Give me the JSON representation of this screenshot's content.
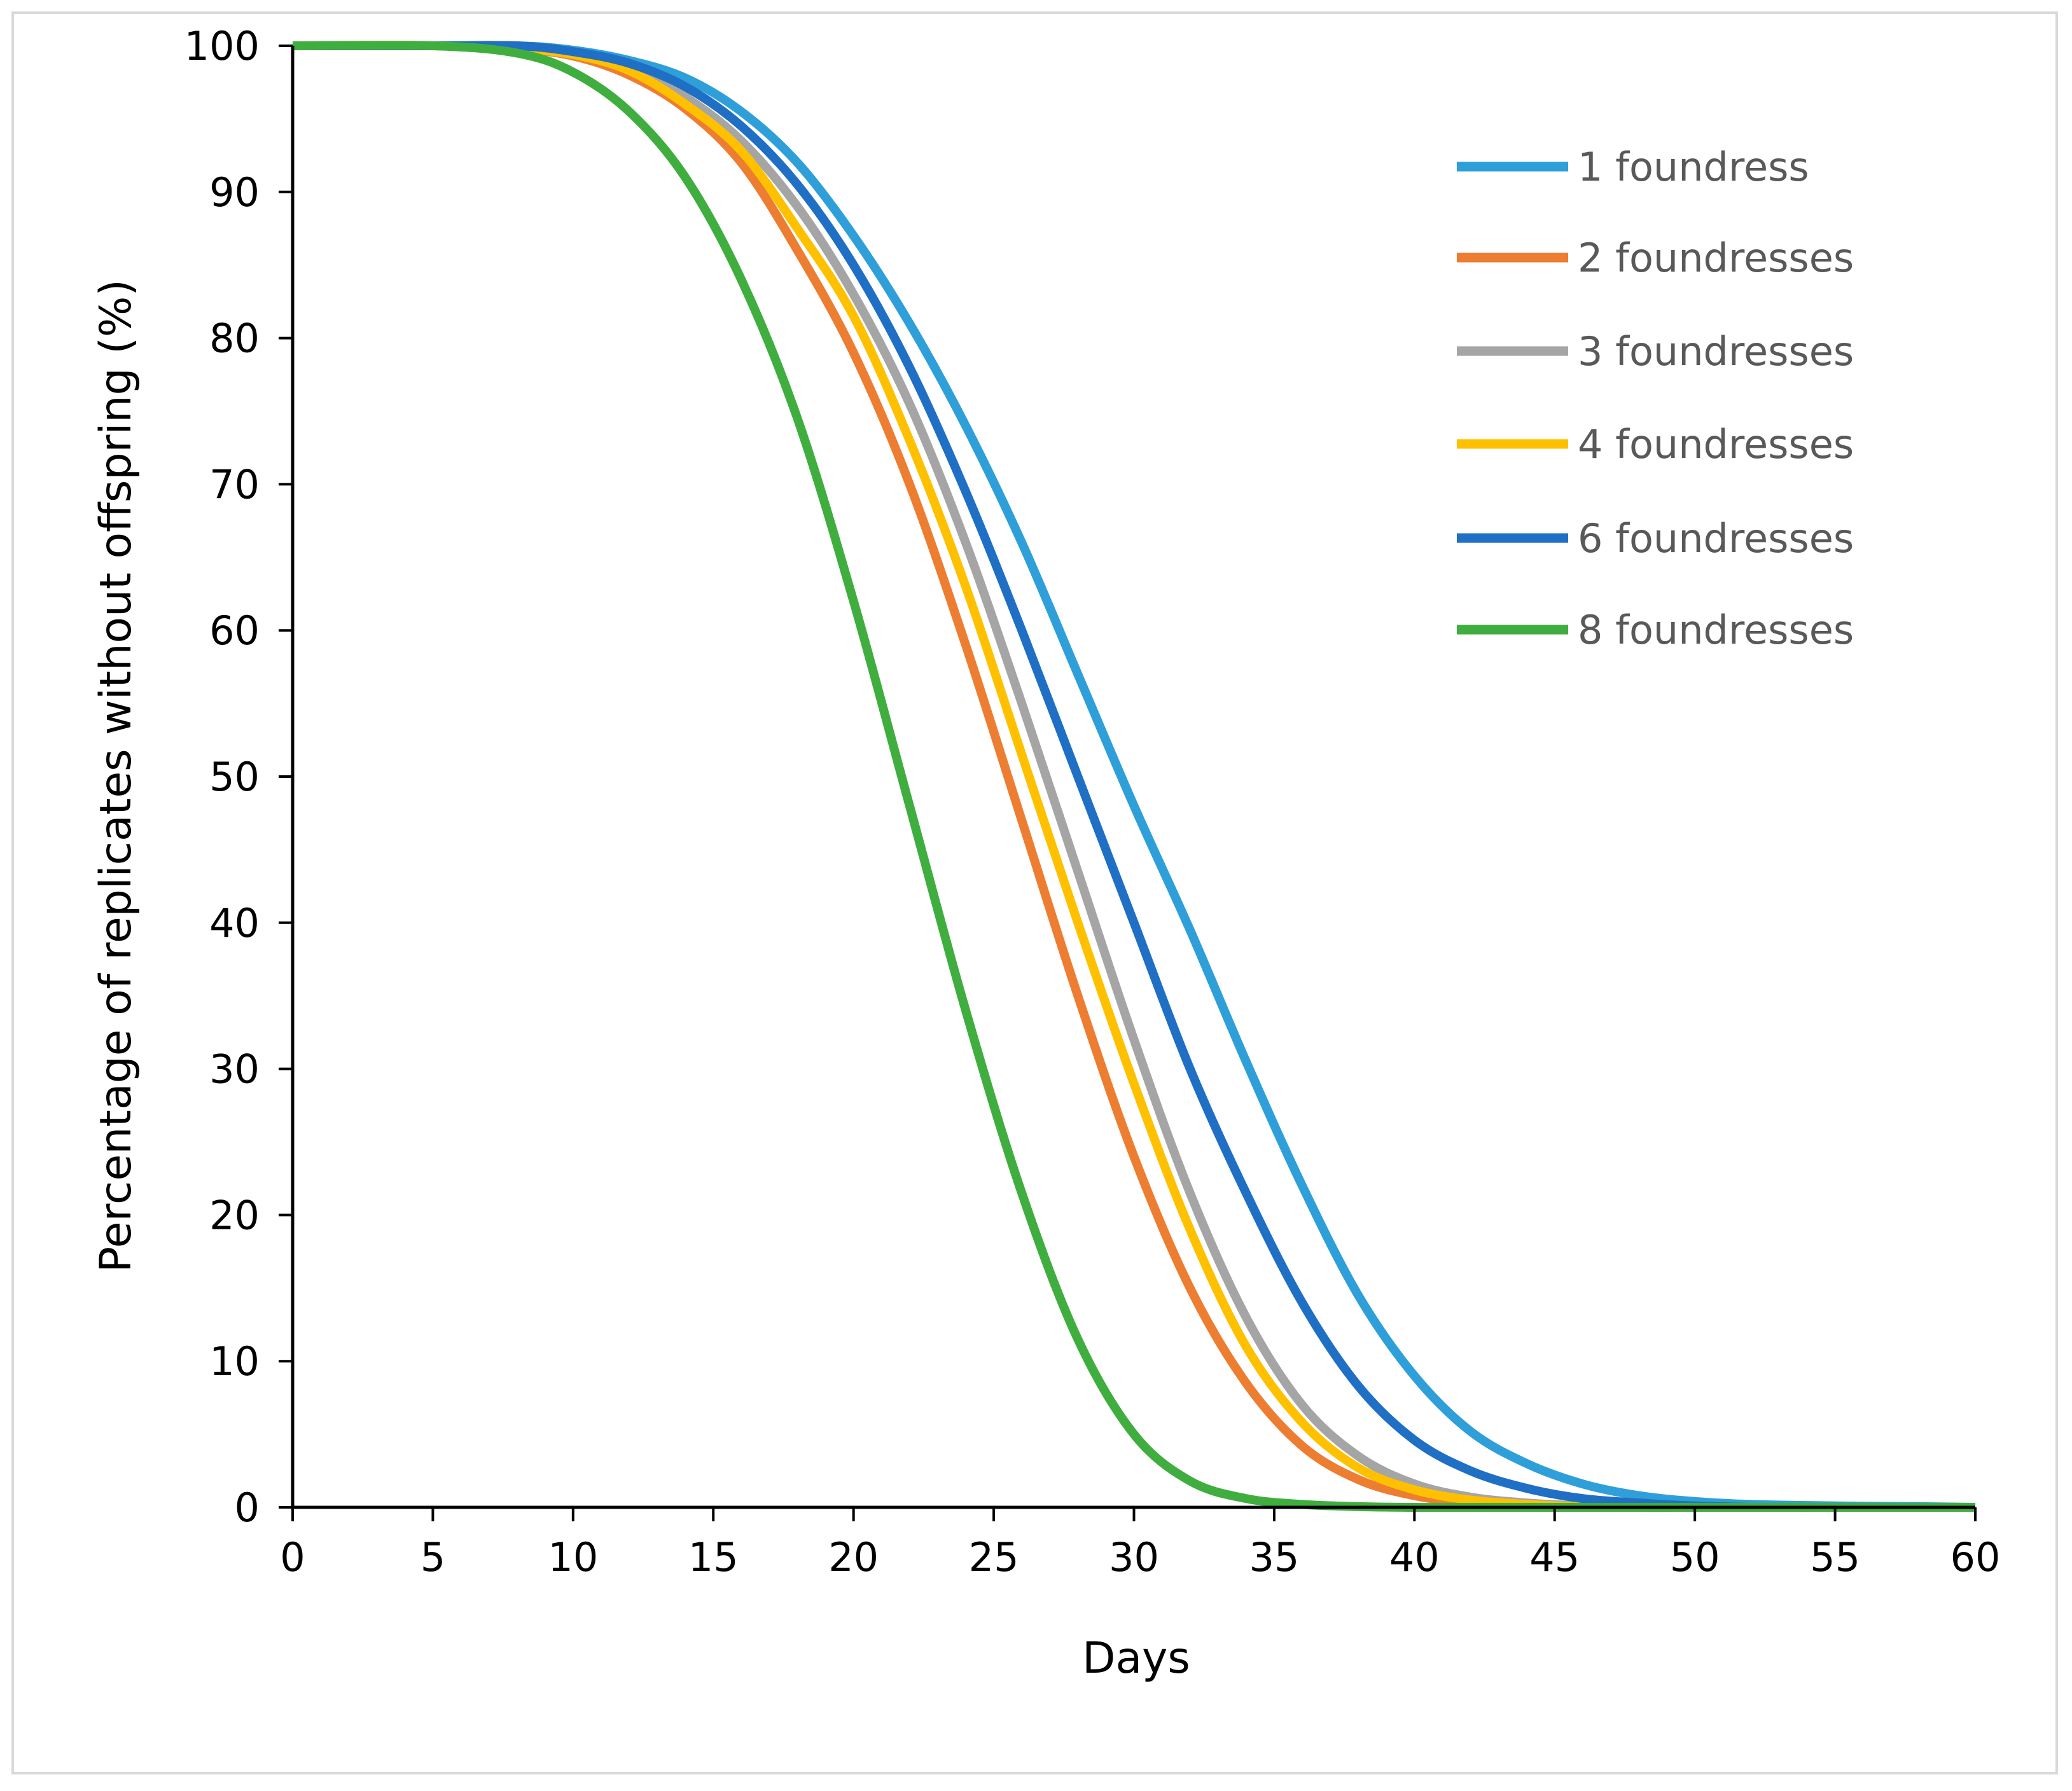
{
  "chart_data": {
    "type": "line",
    "title": "",
    "xlabel": "Days",
    "ylabel": "Percentage of replicates without offspring (%)",
    "xlim": [
      0,
      60
    ],
    "ylim": [
      0,
      100
    ],
    "xticks": [
      0,
      5,
      10,
      15,
      20,
      25,
      30,
      35,
      40,
      45,
      50,
      55,
      60
    ],
    "yticks": [
      0,
      10,
      20,
      30,
      40,
      50,
      60,
      70,
      80,
      90,
      100
    ],
    "grid": false,
    "legend_position": "top-right",
    "x": [
      0,
      5,
      8,
      10,
      12,
      14,
      16,
      18,
      20,
      22,
      24,
      26,
      28,
      30,
      32,
      34,
      36,
      38,
      40,
      42,
      44,
      46,
      48,
      50,
      52,
      55,
      58,
      60
    ],
    "series": [
      {
        "name": "1 foundress",
        "color": "#2e9fd9",
        "values": [
          100,
          100,
          100,
          99.7,
          99,
          97.8,
          95.5,
          92,
          87,
          81,
          74,
          66,
          57,
          48,
          39.5,
          30.5,
          22,
          14.5,
          9,
          5.2,
          3,
          1.6,
          0.8,
          0.4,
          0.2,
          0.1,
          0.05,
          0
        ]
      },
      {
        "name": "2 foundresses",
        "color": "#ed7d31",
        "values": [
          100,
          100,
          99.8,
          99.3,
          98,
          95.7,
          92,
          86,
          79,
          70,
          59,
          47,
          35,
          24,
          15,
          8.5,
          4.2,
          1.9,
          0.8,
          0.3,
          0.1,
          0.05,
          0,
          0,
          0,
          0,
          0,
          0
        ]
      },
      {
        "name": "3 foundresses",
        "color": "#a5a5a5",
        "values": [
          100,
          100,
          99.8,
          99.4,
          98.5,
          96.5,
          93.5,
          89,
          83,
          75.5,
          66,
          55,
          43.5,
          32,
          21.5,
          13,
          7,
          3.5,
          1.6,
          0.7,
          0.3,
          0.1,
          0,
          0,
          0,
          0,
          0,
          0
        ]
      },
      {
        "name": "4 foundresses",
        "color": "#ffc000",
        "values": [
          100,
          100,
          99.8,
          99.4,
          98.3,
          96,
          92.8,
          87.5,
          81.5,
          73,
          63,
          51.5,
          40,
          29,
          19,
          11,
          5.8,
          2.7,
          1.2,
          0.5,
          0.2,
          0.05,
          0,
          0,
          0,
          0,
          0,
          0
        ]
      },
      {
        "name": "6 foundresses",
        "color": "#1f6fc5",
        "values": [
          100,
          100,
          100,
          99.6,
          98.8,
          97.2,
          94.5,
          90.5,
          85,
          78,
          69.5,
          60,
          50,
          40,
          30,
          21.5,
          14,
          8.3,
          4.6,
          2.5,
          1.3,
          0.6,
          0.3,
          0.1,
          0,
          0,
          0,
          0
        ]
      },
      {
        "name": "8 foundresses",
        "color": "#3fae3f",
        "values": [
          100,
          100,
          99.5,
          98.2,
          95.5,
          91,
          84,
          74.5,
          62,
          48,
          34,
          21.5,
          11.5,
          5,
          1.8,
          0.6,
          0.2,
          0.05,
          0,
          0,
          0,
          0,
          0,
          0,
          0,
          0,
          0,
          0
        ]
      }
    ]
  }
}
